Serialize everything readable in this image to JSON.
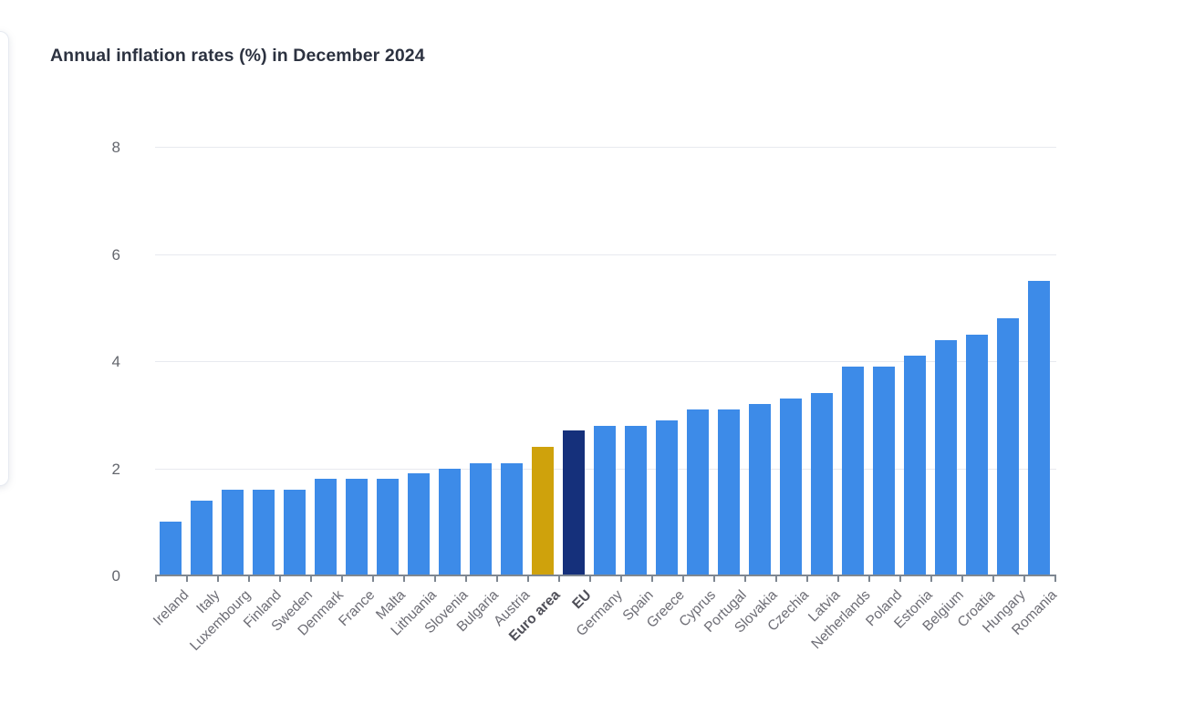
{
  "header": {
    "title": "Annual inflation rates (%) in December 2024"
  },
  "chart_data": {
    "type": "bar",
    "title": "Annual inflation rates (%) in December 2024",
    "categories": [
      "Ireland",
      "Italy",
      "Luxembourg",
      "Finland",
      "Sweden",
      "Denmark",
      "France",
      "Malta",
      "Lithuania",
      "Slovenia",
      "Bulgaria",
      "Austria",
      "Euro area",
      "EU",
      "Germany",
      "Spain",
      "Greece",
      "Cyprus",
      "Portugal",
      "Slovakia",
      "Czechia",
      "Latvia",
      "Netherlands",
      "Poland",
      "Estonia",
      "Belgium",
      "Croatia",
      "Hungary",
      "Romania"
    ],
    "values": [
      1.0,
      1.4,
      1.6,
      1.6,
      1.6,
      1.8,
      1.8,
      1.8,
      1.9,
      2.0,
      2.1,
      2.1,
      2.4,
      2.7,
      2.8,
      2.8,
      2.9,
      3.1,
      3.1,
      3.2,
      3.3,
      3.4,
      3.9,
      3.9,
      4.1,
      4.4,
      4.5,
      4.8,
      5.5
    ],
    "emphasized_categories": [
      "Euro area",
      "EU"
    ],
    "colors": {
      "default": "#3D8BE8",
      "Euro area": "#CFA20C",
      "EU": "#15307B"
    },
    "xlabel": "",
    "ylabel": "",
    "ylim": [
      0,
      8
    ],
    "y_ticks": [
      0,
      2,
      4,
      6,
      8
    ],
    "grid": true,
    "legend": false
  }
}
